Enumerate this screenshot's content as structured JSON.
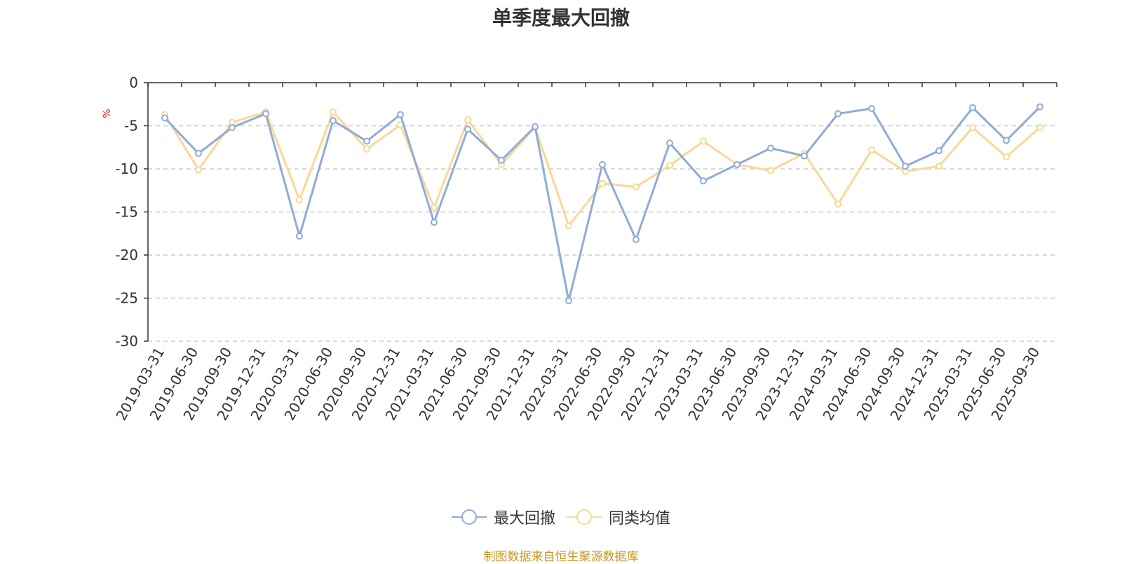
{
  "colors": {
    "series_max": "#8fabd9",
    "series_avg": "#fad895",
    "unit": "#e02020",
    "source": "#c8961e",
    "axis": "#333333",
    "grid": "#cccccc"
  },
  "chart_data": {
    "type": "line",
    "title": "单季度最大回撤",
    "ylabel": "%",
    "ylim": [
      -30,
      0
    ],
    "yticks": [
      "0",
      "-5",
      "-10",
      "-15",
      "-20",
      "-25",
      "-30"
    ],
    "ytick_values": [
      0,
      -5,
      -10,
      -15,
      -20,
      -25,
      -30
    ],
    "grid": "horizontal dashed",
    "legend_position": "bottom",
    "categories": [
      "2019-03-31",
      "2019-06-30",
      "2019-09-30",
      "2019-12-31",
      "2020-03-31",
      "2020-06-30",
      "2020-09-30",
      "2020-12-31",
      "2021-03-31",
      "2021-06-30",
      "2021-09-30",
      "2021-12-31",
      "2022-03-31",
      "2022-06-30",
      "2022-09-30",
      "2022-12-31",
      "2023-03-31",
      "2023-06-30",
      "2023-09-30",
      "2023-12-31",
      "2024-03-31",
      "2024-06-30",
      "2024-09-30",
      "2024-12-31",
      "2025-03-31",
      "2025-06-30",
      "2025-09-30"
    ],
    "series": [
      {
        "name": "最大回撤",
        "values": [
          -4.1,
          -8.2,
          -5.2,
          -3.6,
          -17.8,
          -4.4,
          -6.8,
          -3.7,
          -16.2,
          -5.4,
          -9.0,
          -5.1,
          -25.3,
          -9.5,
          -18.2,
          -7.0,
          -11.4,
          -9.5,
          -7.6,
          -8.5,
          -3.6,
          -3.0,
          -9.7,
          -7.9,
          -2.9,
          -6.7,
          -2.8
        ]
      },
      {
        "name": "同类均值",
        "values": [
          -3.7,
          -10.1,
          -4.6,
          -3.4,
          -13.6,
          -3.4,
          -7.7,
          -4.9,
          -14.5,
          -4.3,
          -9.5,
          -5.2,
          -16.6,
          -11.7,
          -12.1,
          -9.6,
          -6.8,
          -9.5,
          -10.2,
          -8.2,
          -14.1,
          -7.8,
          -10.3,
          -9.7,
          -5.2,
          -8.6,
          -5.2
        ]
      }
    ]
  },
  "source_text": "制图数据来自恒生聚源数据库"
}
